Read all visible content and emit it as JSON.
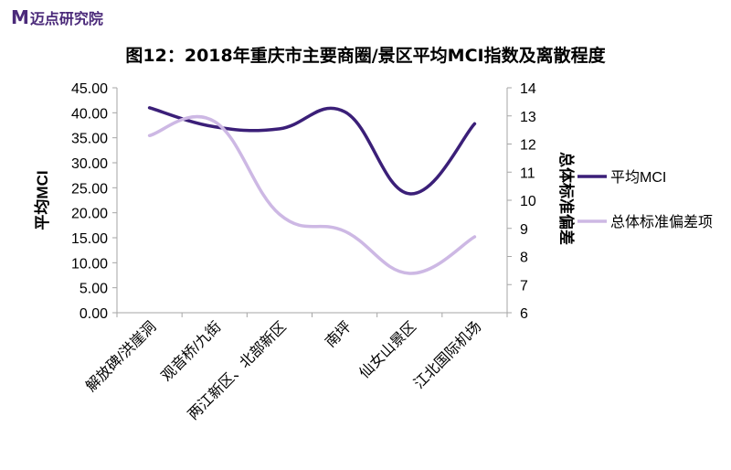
{
  "header": {
    "logo_mark": "M",
    "logo_text": "迈点研究院"
  },
  "colors": {
    "mci": "#3b1f78",
    "std": "#cdb8e4",
    "axis": "#a6a6a6",
    "text": "#000000"
  },
  "chart_data": {
    "type": "line",
    "title": "图12：2018年重庆市主要商圈/景区平均MCI指数及离散程度",
    "categories": [
      "解放碑/洪崖洞",
      "观音桥/九街",
      "两江新区、北部新区",
      "南坪",
      "仙女山景区",
      "江北国际机场"
    ],
    "y_left": {
      "label": "平均MCI",
      "range": [
        0,
        45
      ],
      "ticks": [
        "0.00",
        "5.00",
        "10.00",
        "15.00",
        "20.00",
        "25.00",
        "30.00",
        "35.00",
        "40.00",
        "45.00"
      ]
    },
    "y_right": {
      "label": "总体标准偏差",
      "range": [
        6,
        14
      ],
      "ticks": [
        "6",
        "7",
        "8",
        "9",
        "10",
        "11",
        "12",
        "13",
        "14"
      ]
    },
    "series": [
      {
        "name": "平均MCI",
        "axis": "left",
        "values": [
          41.0,
          37.2,
          36.8,
          40.2,
          23.8,
          37.8
        ]
      },
      {
        "name": "总体标准偏差项",
        "axis": "right",
        "values": [
          12.3,
          12.8,
          9.5,
          8.9,
          7.4,
          8.7
        ]
      }
    ],
    "legend_position": "right",
    "grid": false
  }
}
